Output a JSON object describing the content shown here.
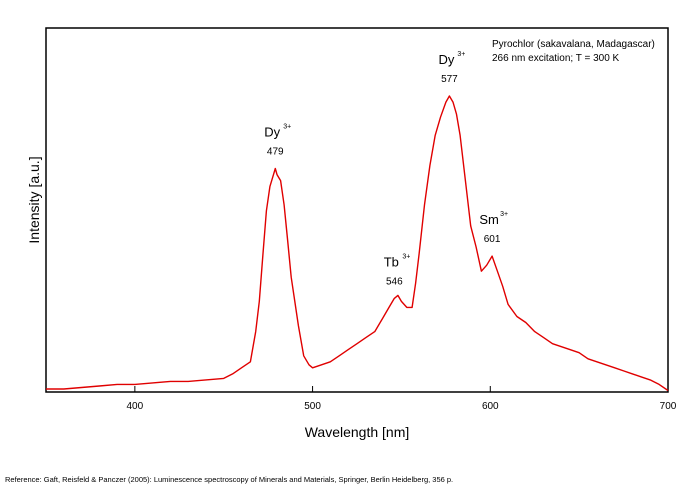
{
  "chart_data": {
    "type": "line",
    "xlabel": "Wavelength [nm]",
    "ylabel": "Intensity [a.u.]",
    "xlim": [
      350,
      700
    ],
    "ylim": [
      0,
      1
    ],
    "x_ticks": [
      400,
      500,
      600,
      700
    ],
    "y_ticks_labeled": false,
    "grid": false,
    "info_lines": [
      "Pyrochlor (sakavalana, Madagascar)",
      "266 nm excitation; T = 300 K"
    ],
    "reference": "Reference: Gaft, Reisfeld & Panczer (2005): Luminescence spectroscopy of Minerals and Materials, Springer, Berlin Heidelberg, 356 p.",
    "annotations": [
      {
        "ion": "Dy",
        "charge": "3+",
        "wavelength": "479"
      },
      {
        "ion": "Tb",
        "charge": "3+",
        "wavelength": "546"
      },
      {
        "ion": "Dy",
        "charge": "3+",
        "wavelength": "577"
      },
      {
        "ion": "Sm",
        "charge": "3+",
        "wavelength": "601"
      }
    ],
    "series": [
      {
        "color": "#e00000",
        "x": [
          350,
          360,
          370,
          380,
          390,
          400,
          410,
          420,
          430,
          440,
          450,
          455,
          460,
          465,
          468,
          470,
          472,
          474,
          476,
          478,
          479,
          480,
          482,
          484,
          486,
          488,
          490,
          492,
          495,
          498,
          500,
          505,
          510,
          515,
          520,
          525,
          530,
          535,
          540,
          543,
          546,
          548,
          550,
          553,
          556,
          558,
          560,
          563,
          566,
          569,
          572,
          575,
          577,
          579,
          581,
          583,
          586,
          589,
          592,
          595,
          598,
          601,
          604,
          607,
          610,
          615,
          620,
          625,
          630,
          635,
          640,
          645,
          650,
          655,
          660,
          665,
          670,
          675,
          680,
          685,
          690,
          695,
          700
        ],
        "y": [
          0.01,
          0.01,
          0.015,
          0.02,
          0.025,
          0.025,
          0.03,
          0.035,
          0.035,
          0.04,
          0.045,
          0.06,
          0.08,
          0.1,
          0.2,
          0.3,
          0.45,
          0.6,
          0.68,
          0.72,
          0.74,
          0.72,
          0.7,
          0.62,
          0.5,
          0.38,
          0.3,
          0.22,
          0.12,
          0.09,
          0.08,
          0.09,
          0.1,
          0.12,
          0.14,
          0.16,
          0.18,
          0.2,
          0.25,
          0.28,
          0.31,
          0.32,
          0.3,
          0.28,
          0.28,
          0.36,
          0.46,
          0.62,
          0.75,
          0.85,
          0.91,
          0.96,
          0.98,
          0.96,
          0.92,
          0.85,
          0.7,
          0.55,
          0.48,
          0.4,
          0.42,
          0.45,
          0.4,
          0.35,
          0.29,
          0.25,
          0.23,
          0.2,
          0.18,
          0.16,
          0.15,
          0.14,
          0.13,
          0.11,
          0.1,
          0.09,
          0.08,
          0.07,
          0.06,
          0.05,
          0.04,
          0.025,
          0.005
        ]
      }
    ]
  }
}
